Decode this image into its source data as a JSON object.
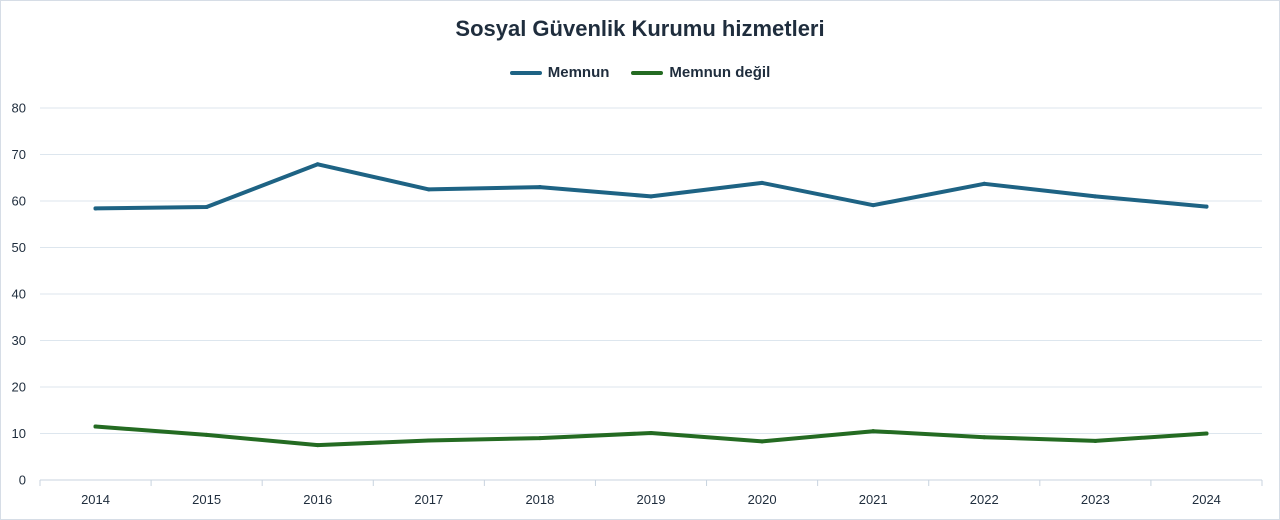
{
  "chart_data": {
    "type": "line",
    "title": "Sosyal Güvenlik Kurumu hizmetleri",
    "categories": [
      "2014",
      "2015",
      "2016",
      "2017",
      "2018",
      "2019",
      "2020",
      "2021",
      "2022",
      "2023",
      "2024"
    ],
    "series": [
      {
        "name": "Memnun",
        "color": "#1e6384",
        "values": [
          58.4,
          58.7,
          67.9,
          62.5,
          63.0,
          61.0,
          63.9,
          59.1,
          63.7,
          61.0,
          58.8
        ]
      },
      {
        "name": "Memnun değil",
        "color": "#246b22",
        "values": [
          11.5,
          9.7,
          7.5,
          8.5,
          9.0,
          10.1,
          8.3,
          10.5,
          9.2,
          8.4,
          10.0
        ]
      }
    ],
    "yticks": [
      "0",
      "10",
      "20",
      "30",
      "40",
      "50",
      "60",
      "70",
      "80"
    ],
    "ylim": [
      0,
      80
    ],
    "grid": true,
    "legend_position": "top"
  }
}
